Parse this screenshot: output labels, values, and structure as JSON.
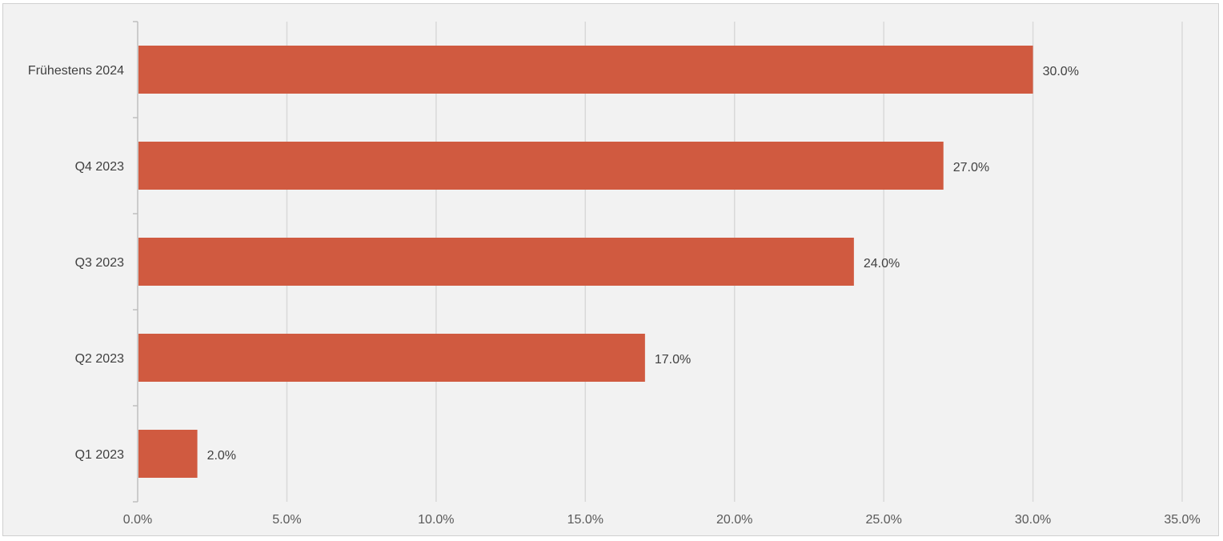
{
  "chart_data": {
    "type": "bar",
    "orientation": "horizontal",
    "categories": [
      "Frühestens 2024",
      "Q4 2023",
      "Q3 2023",
      "Q2 2023",
      "Q1 2023"
    ],
    "values": [
      30.0,
      27.0,
      24.0,
      17.0,
      2.0
    ],
    "data_labels": [
      "30.0%",
      "27.0%",
      "24.0%",
      "17.0%",
      "2.0%"
    ],
    "xlim": [
      0,
      35
    ],
    "x_ticks": [
      0,
      5,
      10,
      15,
      20,
      25,
      30,
      35
    ],
    "x_tick_labels": [
      "0.0%",
      "5.0%",
      "10.0%",
      "15.0%",
      "20.0%",
      "25.0%",
      "30.0%",
      "35.0%"
    ],
    "title": "",
    "xlabel": "",
    "ylabel": "",
    "grid": "vertical",
    "legend": "none",
    "colors": {
      "bar": "#d05a40",
      "background": "#f2f2f2",
      "grid": "#d9d9d9",
      "axis": "#bfbfbf"
    }
  }
}
